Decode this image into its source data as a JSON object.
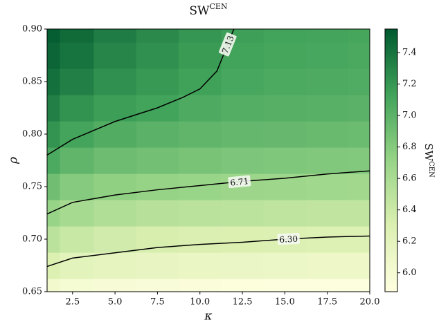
{
  "chart_data": {
    "type": "contour",
    "title_main": "SW",
    "title_superscript": "CEN",
    "x_label": "κ",
    "y_label": "ρ",
    "colorbar_label_main": "SW",
    "colorbar_label_superscript": "CEN",
    "xlim": [
      1,
      20
    ],
    "ylim": [
      0.65,
      0.9
    ],
    "xticks": [
      2.5,
      {
        "value": 5,
        "label": "5.0"
      },
      7.5,
      {
        "value": 10,
        "label": "10.0"
      },
      12.5,
      {
        "value": 15,
        "label": "15.0"
      },
      17.5,
      {
        "value": 20,
        "label": "20.0"
      }
    ],
    "yticks": [
      0.65,
      {
        "value": 0.7,
        "label": "0.70"
      },
      0.75,
      {
        "value": 0.8,
        "label": "0.80"
      },
      0.85,
      {
        "value": 0.9,
        "label": "0.90"
      }
    ],
    "clim": [
      5.88,
      7.55
    ],
    "cticks": [
      {
        "value": 6,
        "label": "6.0"
      },
      6.2,
      6.4,
      6.6,
      6.8,
      {
        "value": 7,
        "label": "7.0"
      },
      7.2,
      7.4
    ],
    "colormap": [
      "#ffffe0",
      "#dcf0b2",
      "#97d487",
      "#41a35a",
      "#00592f"
    ],
    "x": [
      1,
      2.5,
      5,
      7.5,
      10,
      12.5,
      15,
      17.5,
      20
    ],
    "y": [
      0.65,
      0.675,
      0.7,
      0.725,
      0.75,
      0.775,
      0.8,
      0.825,
      0.85,
      0.875,
      0.9
    ],
    "z": [
      [
        6.05,
        6.0,
        5.97,
        5.95,
        5.93,
        5.92,
        5.91,
        5.9,
        5.9
      ],
      [
        6.3,
        6.22,
        6.18,
        6.15,
        6.13,
        6.12,
        6.11,
        6.1,
        6.1
      ],
      [
        6.5,
        6.42,
        6.37,
        6.33,
        6.31,
        6.3,
        6.29,
        6.28,
        6.28
      ],
      [
        6.71,
        6.62,
        6.56,
        6.52,
        6.5,
        6.49,
        6.47,
        6.46,
        6.46
      ],
      [
        6.9,
        6.8,
        6.75,
        6.72,
        6.7,
        6.68,
        6.67,
        6.66,
        6.65
      ],
      [
        7.08,
        6.98,
        6.92,
        6.89,
        6.86,
        6.84,
        6.83,
        6.82,
        6.81
      ],
      [
        7.22,
        7.12,
        7.05,
        7.01,
        6.98,
        6.96,
        6.95,
        6.94,
        6.93
      ],
      [
        7.33,
        7.23,
        7.16,
        7.13,
        7.07,
        7.04,
        7.03,
        7.02,
        7.01
      ],
      [
        7.42,
        7.33,
        7.24,
        7.19,
        7.14,
        7.1,
        7.08,
        7.07,
        7.06
      ],
      [
        7.48,
        7.4,
        7.3,
        7.24,
        7.18,
        7.13,
        7.11,
        7.1,
        7.09
      ],
      [
        7.52,
        7.45,
        7.35,
        7.28,
        7.21,
        7.15,
        7.13,
        7.12,
        7.11
      ]
    ],
    "contours": [
      {
        "level": 7.13,
        "label": "7.13",
        "x": [
          1,
          2.5,
          5,
          7.5,
          9,
          10,
          11,
          12
        ],
        "y": [
          0.78,
          0.795,
          0.812,
          0.825,
          0.835,
          0.843,
          0.86,
          0.9
        ]
      },
      {
        "level": 6.71,
        "label": "6.71",
        "x": [
          1,
          2.5,
          5,
          7.5,
          10,
          12.5,
          15,
          17.5,
          20
        ],
        "y": [
          0.724,
          0.735,
          0.742,
          0.747,
          0.751,
          0.755,
          0.758,
          0.762,
          0.765
        ]
      },
      {
        "level": 6.3,
        "label": "6.30",
        "x": [
          1,
          2.5,
          5,
          7.5,
          10,
          12.5,
          15,
          17.5,
          20
        ],
        "y": [
          0.674,
          0.682,
          0.687,
          0.692,
          0.695,
          0.697,
          0.7,
          0.702,
          0.703
        ]
      }
    ]
  }
}
